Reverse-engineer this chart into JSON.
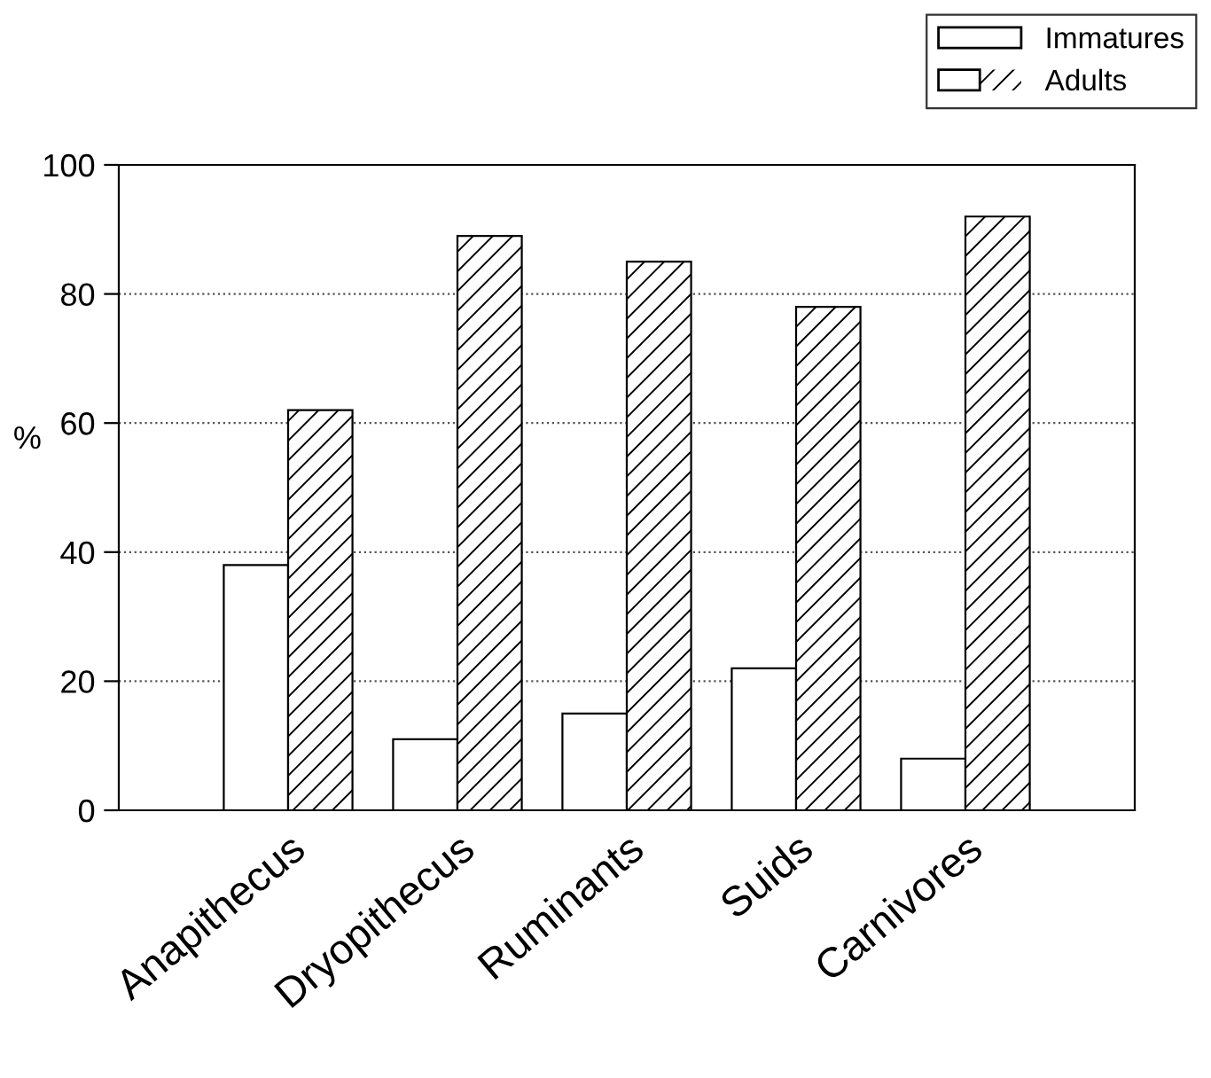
{
  "chart_data": {
    "type": "bar",
    "ylabel": "%",
    "categories": [
      "Anapithecus",
      "Dryopithecus",
      "Ruminants",
      "Suids",
      "Carnivores"
    ],
    "series": [
      {
        "name": "Immatures",
        "color": "#ffffff",
        "values": [
          38,
          11,
          15,
          22,
          8
        ]
      },
      {
        "name": "Adults",
        "color": "#ffffff",
        "values": [
          62,
          89,
          85,
          78,
          92
        ]
      }
    ],
    "ylim": [
      0,
      100
    ],
    "yticks": [
      0,
      20,
      40,
      60,
      80,
      100
    ],
    "grid": "y",
    "legend": "top right"
  }
}
